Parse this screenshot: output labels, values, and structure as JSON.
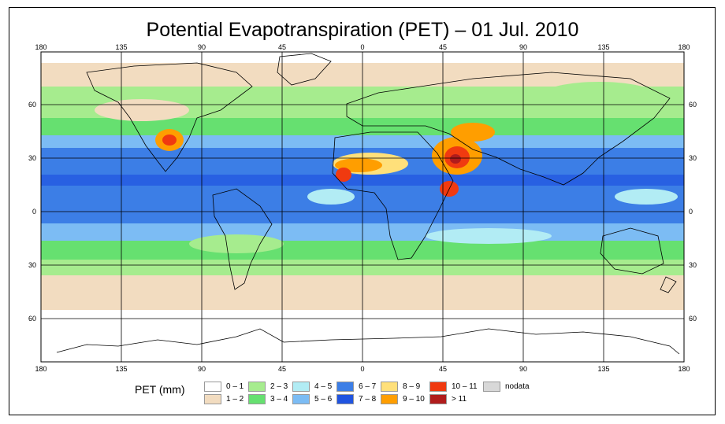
{
  "title": "Potential Evapotranspiration (PET) – 01 Jul. 2010",
  "lon_labels": [
    "180",
    "135",
    "90",
    "45",
    "0",
    "45",
    "90",
    "135",
    "180"
  ],
  "lat_labels": [
    "60",
    "30",
    "0",
    "30",
    "60"
  ],
  "legend": {
    "title": "PET (mm)",
    "items": [
      {
        "label": "0 – 1",
        "color": "#ffffff"
      },
      {
        "label": "1 – 2",
        "color": "#f2dcc0"
      },
      {
        "label": "2 – 3",
        "color": "#a6ec8e"
      },
      {
        "label": "3 – 4",
        "color": "#66e070"
      },
      {
        "label": "4 – 5",
        "color": "#b2ecf4"
      },
      {
        "label": "5 – 6",
        "color": "#7cbcf4"
      },
      {
        "label": "6 – 7",
        "color": "#3c7ee6"
      },
      {
        "label": "7 – 8",
        "color": "#2054e0"
      },
      {
        "label": "8 – 9",
        "color": "#ffe07a"
      },
      {
        "label": "9 – 10",
        "color": "#ff9e00"
      },
      {
        "label": "10 – 11",
        "color": "#f03a10"
      },
      {
        "label": "> 11",
        "color": "#b01c1c"
      },
      {
        "label": "nodata",
        "color": "#d8d8d8"
      }
    ]
  }
}
